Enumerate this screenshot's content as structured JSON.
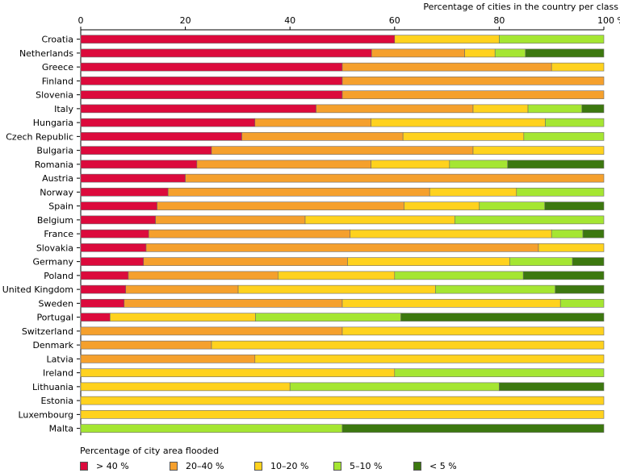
{
  "chart_data": {
    "type": "bar",
    "orientation": "horizontal",
    "stacked": true,
    "title": "",
    "xlabel": "Percentage of cities in the country per class",
    "xlim": [
      0,
      100
    ],
    "xticks": [
      0,
      20,
      40,
      60,
      80,
      100
    ],
    "xtick_labels": [
      "0",
      "20",
      "40",
      "60",
      "80",
      "100 %"
    ],
    "xaxis_position": "top",
    "grid": false,
    "legend_title": "Percentage of city area flooded",
    "legend_position": "bottom",
    "categories": [
      "Croatia",
      "Netherlands",
      "Greece",
      "Finland",
      "Slovenia",
      "Italy",
      "Hungaria",
      "Czech Republic",
      "Bulgaria",
      "Romania",
      "Austria",
      "Norway",
      "Spain",
      "Belgium",
      "France",
      "Slovakia",
      "Germany",
      "Poland",
      "United Kingdom",
      "Sweden",
      "Portugal",
      "Switzerland",
      "Denmark",
      "Latvia",
      "Ireland",
      "Lithuania",
      "Estonia",
      "Luxembourg",
      "Malta"
    ],
    "series": [
      {
        "name": "> 40 %",
        "color": "#dc0a3c",
        "values": [
          60,
          55.6,
          50,
          50,
          50,
          45,
          33.3,
          30.8,
          25,
          22.2,
          20,
          16.7,
          14.6,
          14.3,
          13,
          12.5,
          12,
          9.1,
          8.6,
          8.3,
          5.6,
          0,
          0,
          0,
          0,
          0,
          0,
          0,
          0
        ]
      },
      {
        "name": "20–40 %",
        "color": "#f5a02d",
        "values": [
          0,
          17.8,
          40,
          50,
          50,
          30,
          22.2,
          30.8,
          50,
          33.3,
          80,
          50,
          47.2,
          28.6,
          38.5,
          75,
          39,
          28.6,
          21.5,
          41.7,
          0,
          50,
          25,
          33.3,
          0,
          0,
          0,
          0,
          0
        ]
      },
      {
        "name": "10–20 %",
        "color": "#ffd21e",
        "values": [
          20,
          5.8,
          10,
          0,
          0,
          10.5,
          33.3,
          23.1,
          25,
          15,
          0,
          16.6,
          14.4,
          28.6,
          38.5,
          12.5,
          31,
          22.3,
          37.7,
          41.7,
          27.8,
          50,
          75,
          66.7,
          60,
          40,
          100,
          100,
          0
        ]
      },
      {
        "name": "5–10 %",
        "color": "#a5e632",
        "values": [
          20,
          5.8,
          0,
          0,
          0,
          10.3,
          11.2,
          15.3,
          0,
          11.1,
          0,
          16.7,
          12.5,
          28.5,
          6,
          0,
          12,
          24.6,
          22.9,
          8.3,
          27.8,
          0,
          0,
          0,
          40,
          40,
          0,
          0,
          50
        ]
      },
      {
        "name": "< 5 %",
        "color": "#3c780f",
        "values": [
          0,
          15,
          0,
          0,
          0,
          4.2,
          0,
          0,
          0,
          18.4,
          0,
          0,
          11.3,
          0,
          4,
          0,
          6,
          15.4,
          9.3,
          0,
          38.8,
          0,
          0,
          0,
          0,
          20,
          0,
          0,
          50
        ]
      }
    ]
  }
}
